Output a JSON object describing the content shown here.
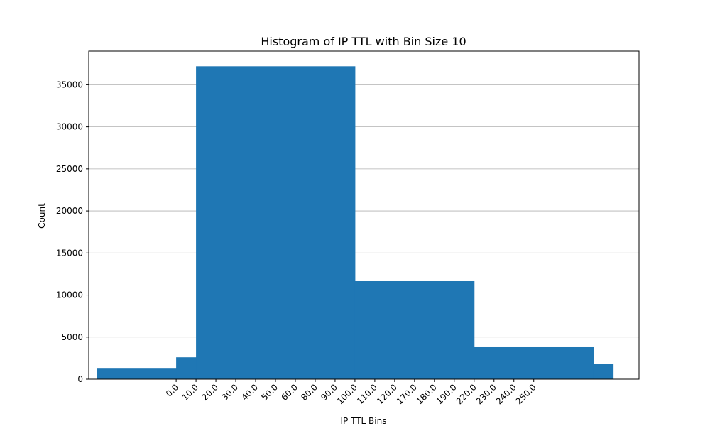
{
  "chart_data": {
    "type": "bar",
    "title": "Histogram of IP TTL with Bin Size 10",
    "xlabel": "IP TTL Bins",
    "ylabel": "Count",
    "ylim": [
      0,
      39000
    ],
    "yticks": [
      0,
      5000,
      10000,
      15000,
      20000,
      25000,
      30000,
      35000
    ],
    "grid": "y",
    "bar_color": "#1f77b4",
    "x_tick_labels": [
      "0.0",
      "10.0",
      "20.0",
      "30.0",
      "40.0",
      "50.0",
      "60.0",
      "80.0",
      "90.0",
      "100.0",
      "110.0",
      "120.0",
      "170.0",
      "180.0",
      "190.0",
      "220.0",
      "230.0",
      "240.0",
      "250.0"
    ],
    "bins": [
      {
        "start": -4.0,
        "end": 0.0,
        "value": 1250
      },
      {
        "start": 0.0,
        "end": 1.0,
        "value": 2600
      },
      {
        "start": 1.0,
        "end": 9.0,
        "value": 37200
      },
      {
        "start": 9.0,
        "end": 15.0,
        "value": 11650
      },
      {
        "start": 15.0,
        "end": 21.0,
        "value": 3800
      },
      {
        "start": 21.0,
        "end": 22.0,
        "value": 1800
      }
    ],
    "xlim": [
      -4.4,
      23.3
    ]
  }
}
